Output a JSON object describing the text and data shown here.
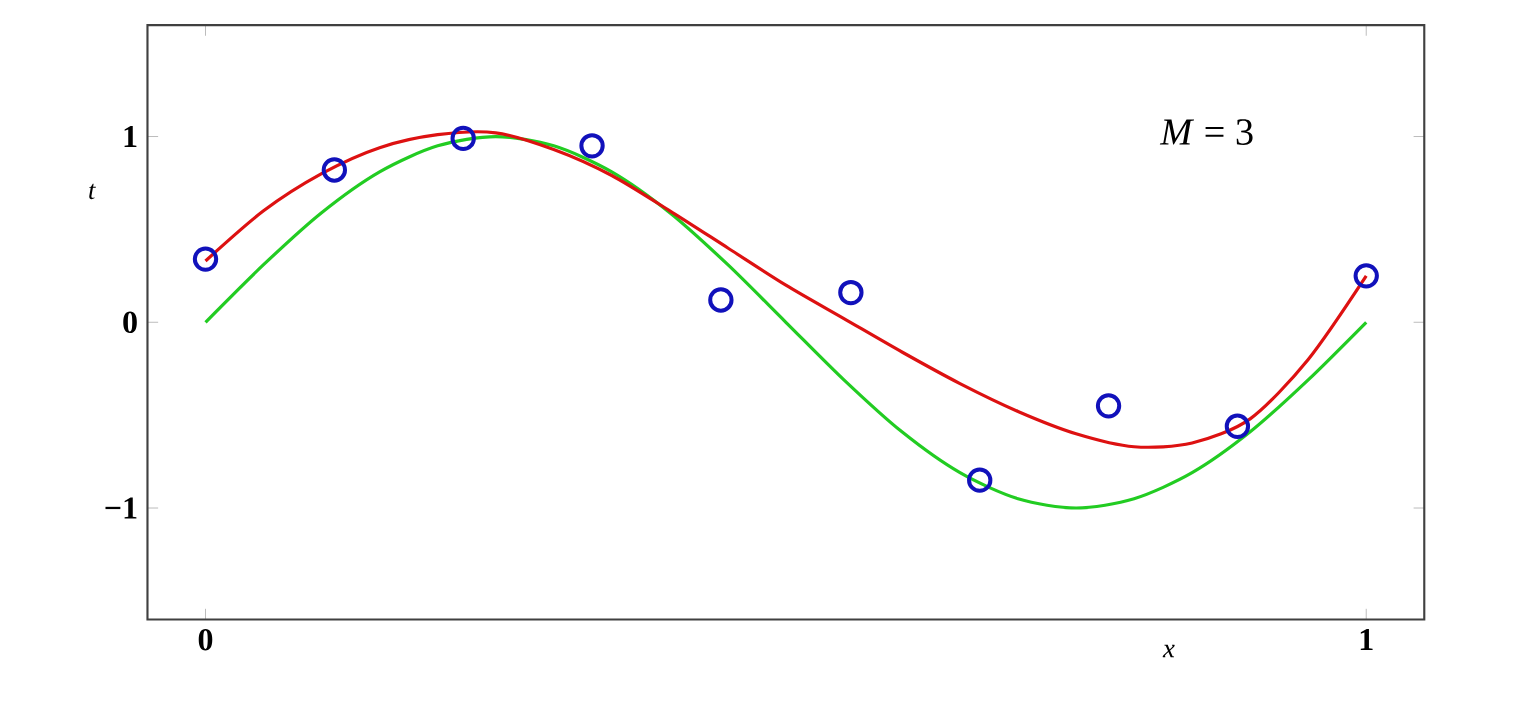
{
  "chart_data": {
    "type": "line",
    "xlabel": "x",
    "ylabel": "t",
    "annotations": [
      "*M* = 3"
    ],
    "xlim": [
      -0.05,
      1.05
    ],
    "ylim": [
      -1.6,
      1.6
    ],
    "xticks": [
      0,
      1
    ],
    "yticks": [
      {
        "value": -1,
        "label": "−1"
      },
      0,
      1
    ],
    "grid": false,
    "line_style": "solid",
    "series": [
      {
        "color": "#22cc22",
        "marker": "none",
        "x": [
          0,
          0.05,
          0.1,
          0.15,
          0.2,
          0.25,
          0.3,
          0.35,
          0.4,
          0.45,
          0.5,
          0.55,
          0.6,
          0.65,
          0.7,
          0.75,
          0.8,
          0.85,
          0.9,
          0.95,
          1
        ],
        "values": [
          0,
          0.31,
          0.59,
          0.81,
          0.95,
          1,
          0.95,
          0.81,
          0.59,
          0.31,
          0,
          -0.31,
          -0.59,
          -0.81,
          -0.95,
          -1,
          -0.95,
          -0.81,
          -0.59,
          -0.31,
          0
        ]
      },
      {
        "color": "#dd1111",
        "marker": "none",
        "x": [
          0,
          0.05,
          0.1,
          0.15,
          0.2,
          0.25,
          0.3,
          0.35,
          0.4,
          0.45,
          0.5,
          0.55,
          0.6,
          0.65,
          0.7,
          0.75,
          0.8,
          0.85,
          0.9,
          0.95,
          1
        ],
        "values": [
          0.33,
          0.6,
          0.8,
          0.94,
          1.01,
          1.02,
          0.93,
          0.79,
          0.6,
          0.4,
          0.2,
          0.02,
          -0.16,
          -0.33,
          -0.48,
          -0.6,
          -0.67,
          -0.65,
          -0.52,
          -0.2,
          0.25
        ]
      },
      {
        "type": "scatter",
        "color": "#1111bb",
        "marker": "circle",
        "x": [
          0,
          0.111,
          0.222,
          0.333,
          0.444,
          0.556,
          0.667,
          0.778,
          0.889,
          1
        ],
        "values": [
          0.34,
          0.82,
          0.99,
          0.95,
          0.12,
          0.16,
          -0.85,
          -0.45,
          -0.56,
          0.25
        ]
      }
    ]
  }
}
